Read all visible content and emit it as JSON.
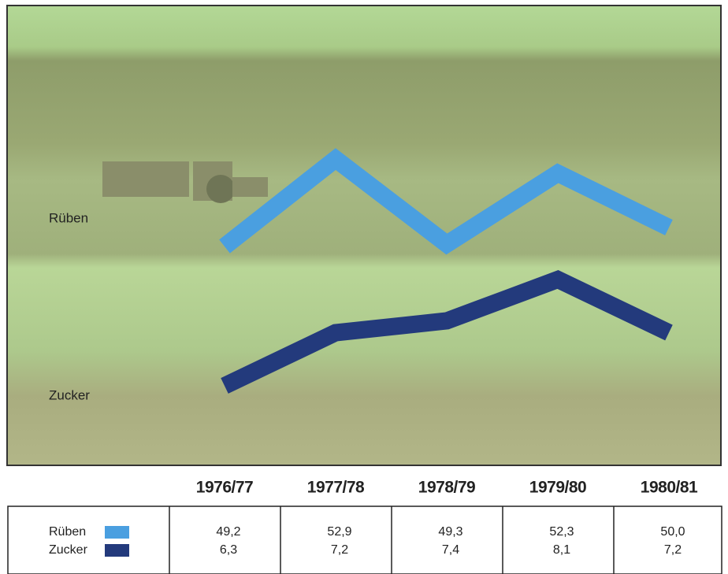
{
  "chart_data": {
    "type": "line",
    "categories": [
      "1976/77",
      "1977/78",
      "1978/79",
      "1979/80",
      "1980/81"
    ],
    "series": [
      {
        "name": "Rüben",
        "color": "#4a9fe0",
        "values": [
          49.2,
          52.9,
          49.3,
          52.3,
          50.0
        ],
        "value_labels": [
          "49,2",
          "52,9",
          "49,3",
          "52,3",
          "50,0"
        ]
      },
      {
        "name": "Zucker",
        "color": "#233a7c",
        "values": [
          6.3,
          7.2,
          7.4,
          8.1,
          7.2
        ],
        "value_labels": [
          "6,3",
          "7,2",
          "7,4",
          "8,1",
          "7,2"
        ]
      }
    ]
  }
}
